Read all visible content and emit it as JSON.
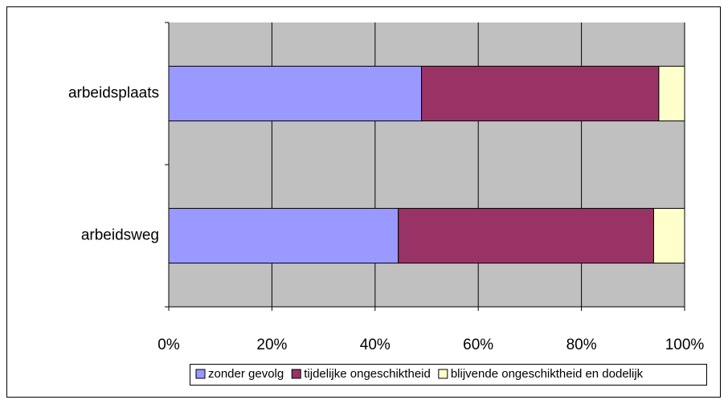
{
  "chart_data": {
    "type": "stacked-bar-horizontal",
    "categories": [
      "arbeidsplaats",
      "arbeidsweg"
    ],
    "series": [
      {
        "name": "zonder gevolg",
        "color": "#9999ff",
        "values": [
          49,
          44.5
        ]
      },
      {
        "name": "tijdelijke ongeschiktheid",
        "color": "#993366",
        "values": [
          46,
          49.5
        ]
      },
      {
        "name": "blijvende ongeschiktheid en dodelijk",
        "color": "#ffffcc",
        "values": [
          5,
          6
        ]
      }
    ],
    "xlim": [
      0,
      100
    ],
    "xticks": [
      {
        "value": 0,
        "label": "0%"
      },
      {
        "value": 20,
        "label": "20%"
      },
      {
        "value": 40,
        "label": "40%"
      },
      {
        "value": 60,
        "label": "60%"
      },
      {
        "value": 80,
        "label": "80%"
      },
      {
        "value": 100,
        "label": "100%"
      }
    ],
    "grid": true,
    "legend": "bottom",
    "plot_background": "#c0c0c0"
  }
}
